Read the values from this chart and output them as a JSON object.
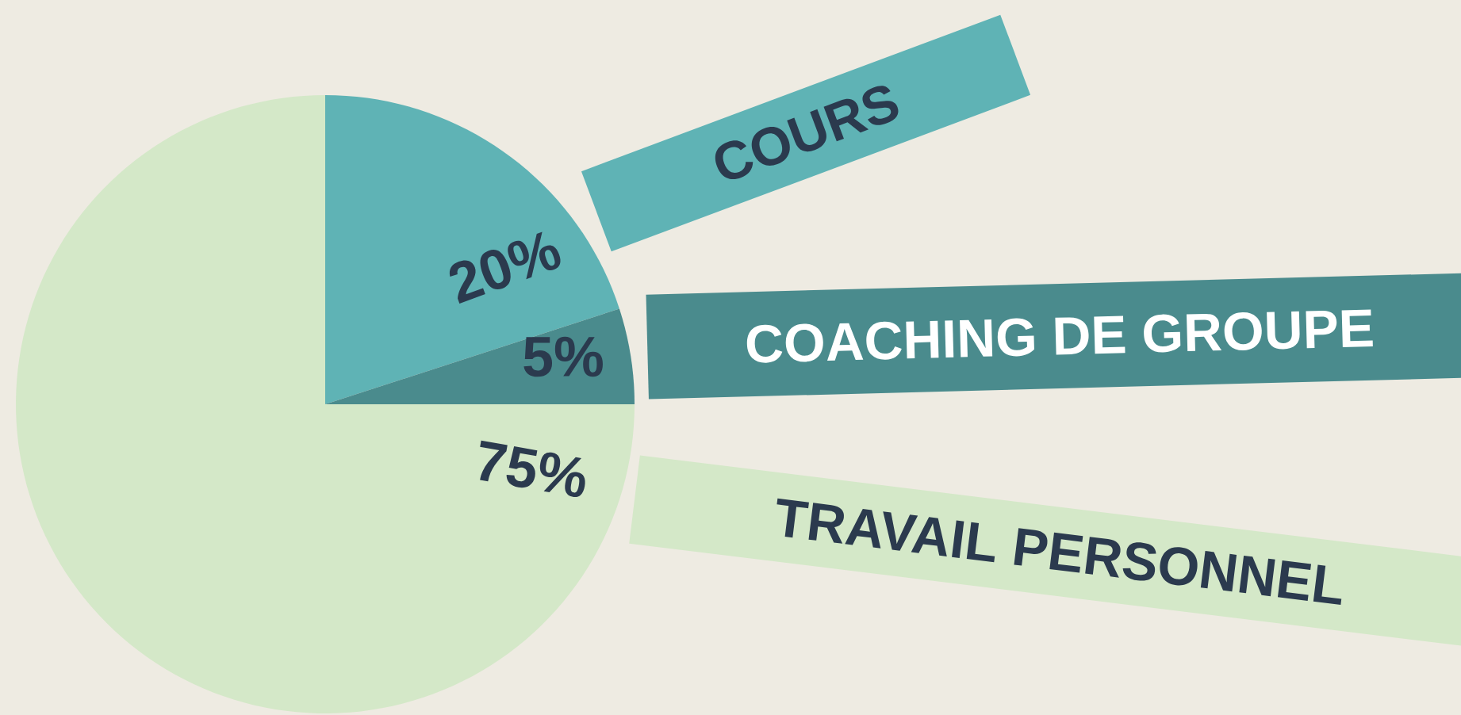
{
  "chart_data": {
    "type": "pie",
    "categories": [
      "COURS",
      "COACHING DE GROUPE",
      "TRAVAIL PERSONNEL"
    ],
    "values": [
      20,
      5,
      75
    ],
    "colors": [
      "#5fb3b5",
      "#4a8b8d",
      "#d4e8c8"
    ],
    "value_labels": [
      "20%",
      "5%",
      "75%"
    ]
  }
}
